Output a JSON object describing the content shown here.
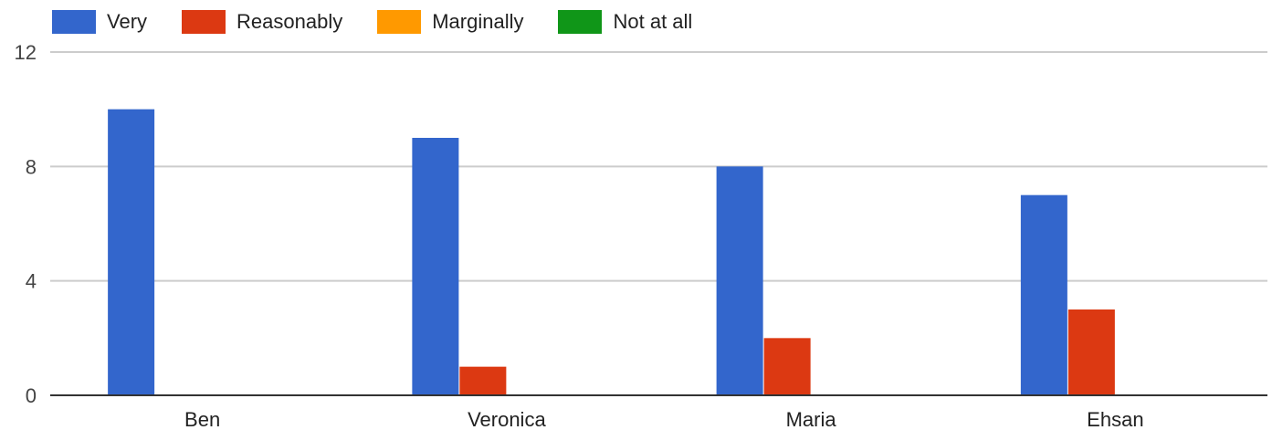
{
  "chart_data": {
    "type": "bar",
    "categories": [
      "Ben",
      "Veronica",
      "Maria",
      "Ehsan"
    ],
    "series": [
      {
        "name": "Very",
        "color": "#3366cc",
        "values": [
          10,
          9,
          8,
          7
        ]
      },
      {
        "name": "Reasonably",
        "color": "#dc3912",
        "values": [
          0,
          1,
          2,
          3
        ]
      },
      {
        "name": "Marginally",
        "color": "#ff9900",
        "values": [
          0,
          0,
          0,
          0
        ]
      },
      {
        "name": "Not at all",
        "color": "#109618",
        "values": [
          0,
          0,
          0,
          0
        ]
      }
    ],
    "yticks": [
      0,
      4,
      8,
      12
    ],
    "ylim": [
      0,
      12
    ],
    "grid": true,
    "legend_position": "top-left"
  }
}
